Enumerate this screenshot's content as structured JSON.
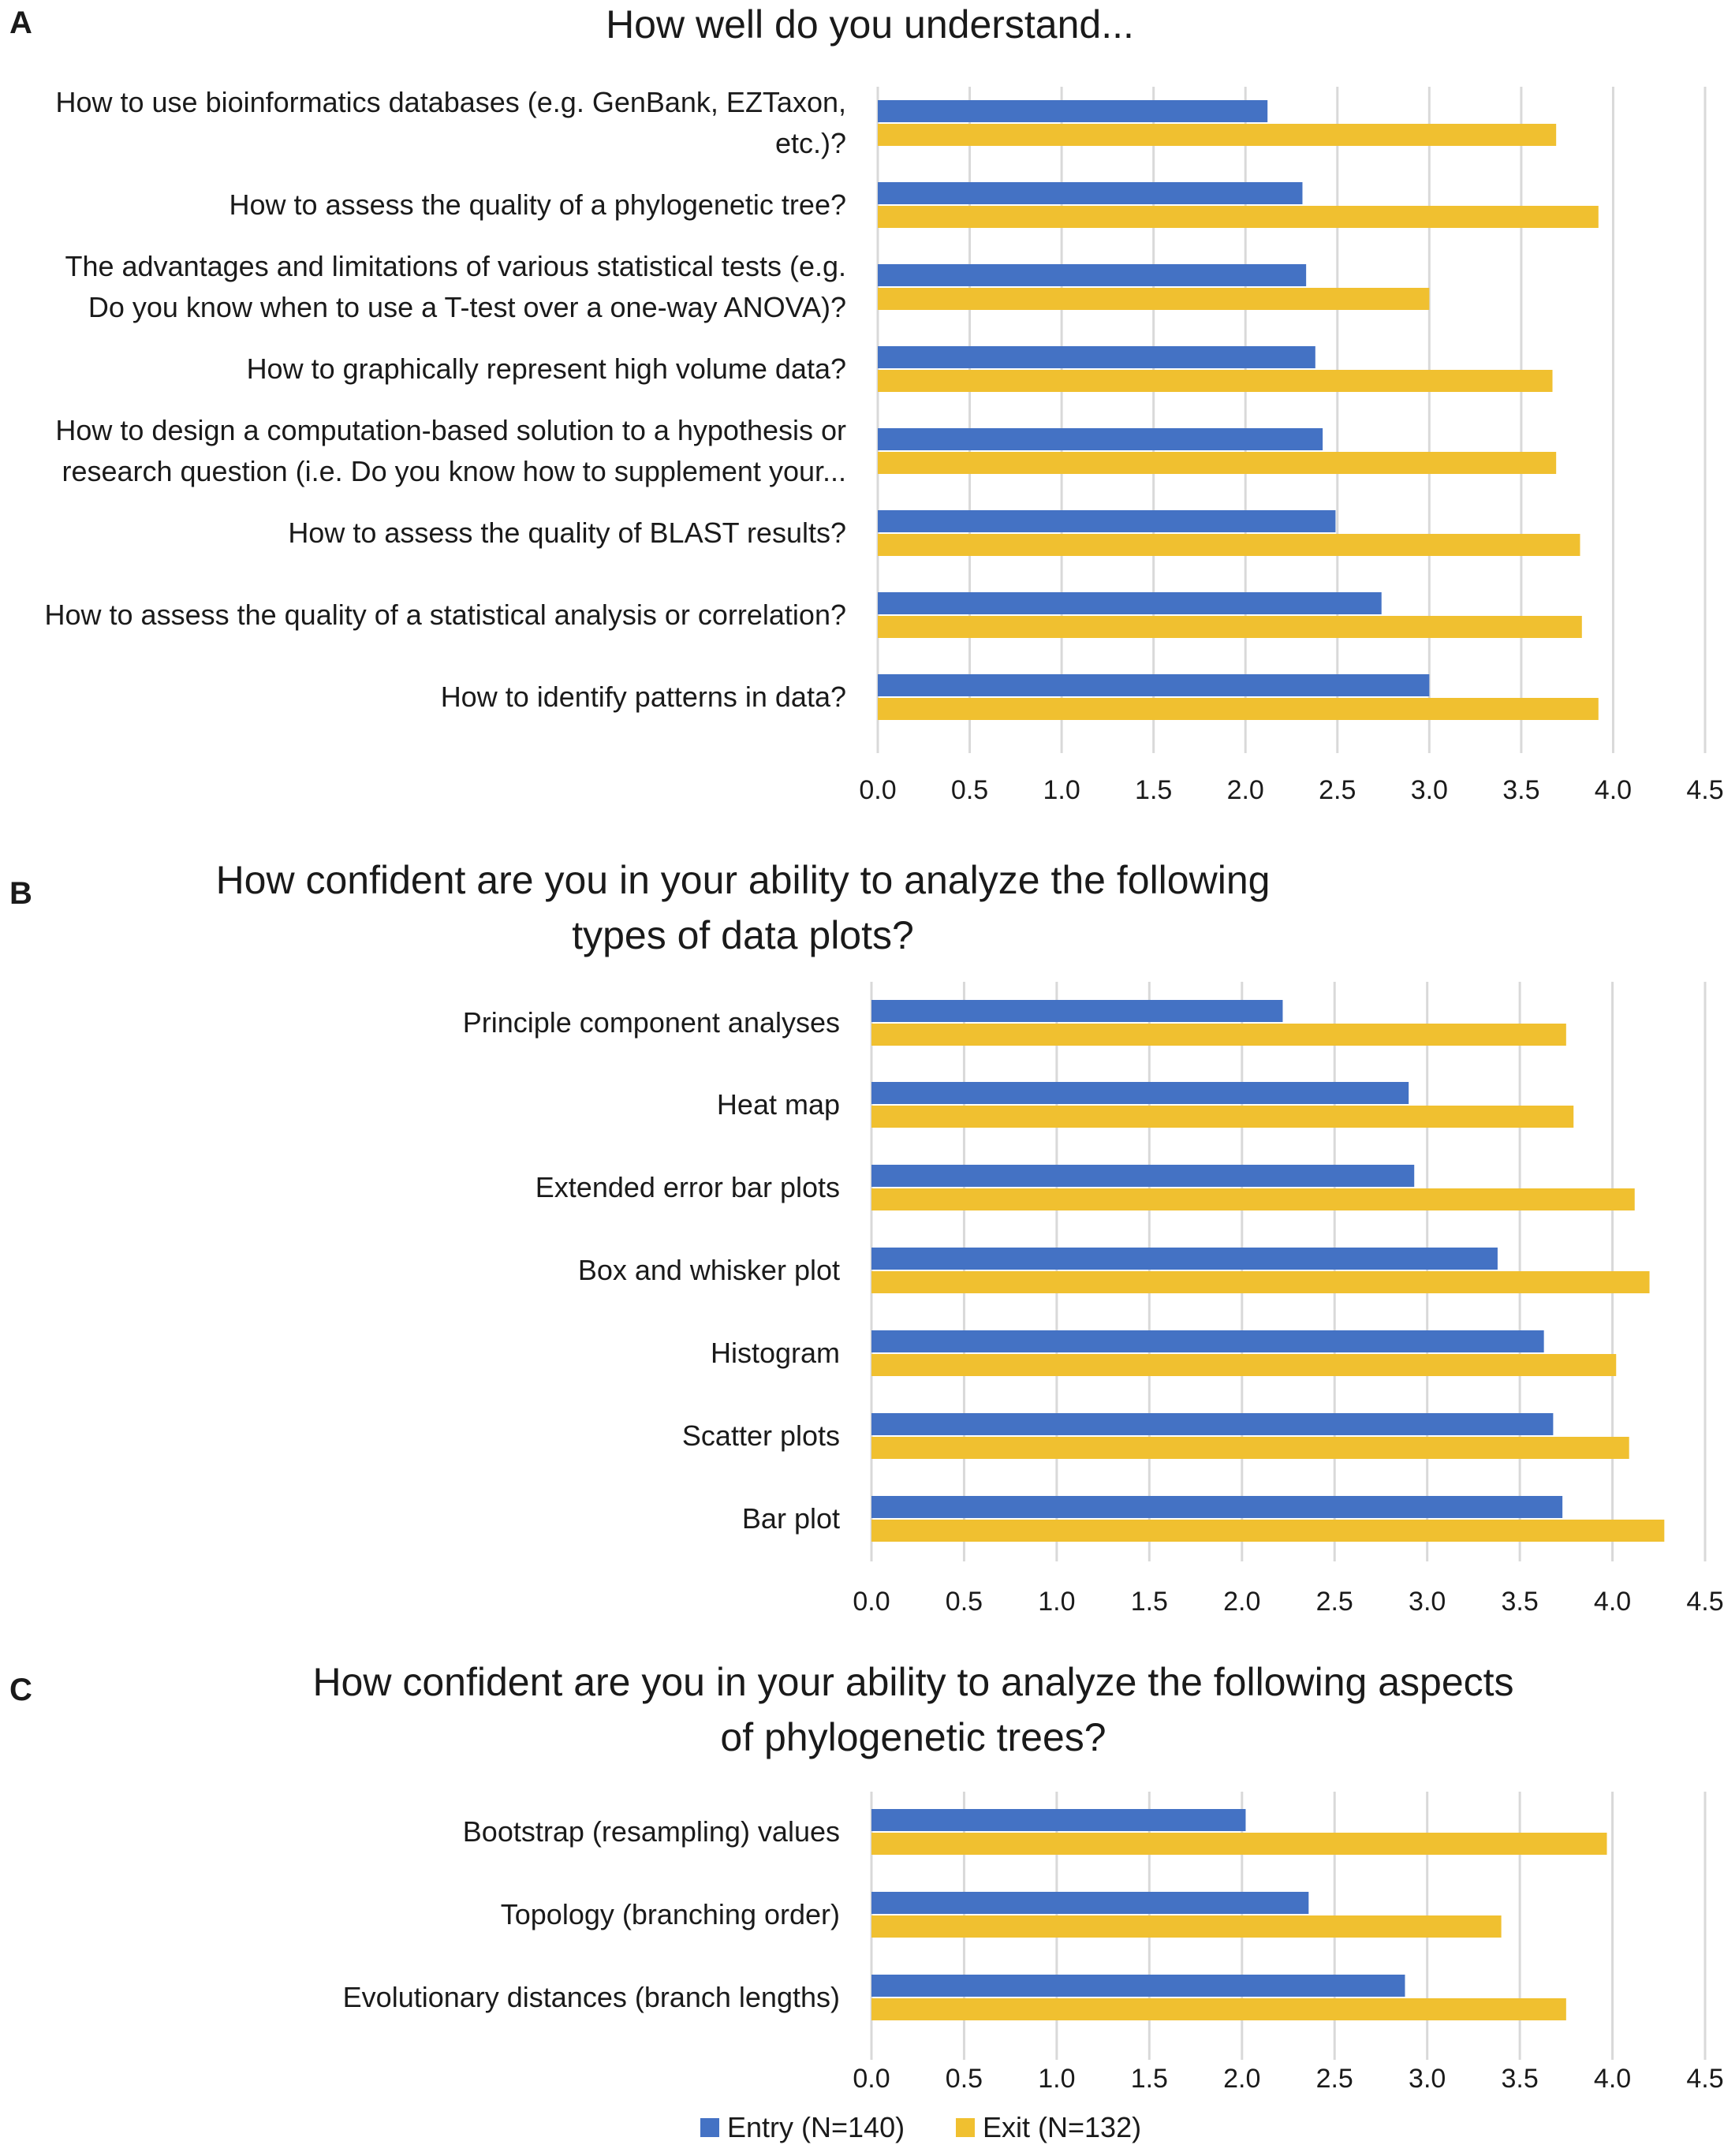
{
  "legend": {
    "entries": [
      {
        "name": "Entry (N=140)",
        "color": "#4472C4"
      },
      {
        "name": "Exit (N=132)",
        "color": "#F0C030"
      }
    ]
  },
  "chart_data": [
    {
      "panel": "A",
      "type": "bar",
      "orientation": "horizontal",
      "title": "How well do you understand...",
      "title_lines": [
        "How well do you understand..."
      ],
      "xlim": [
        0,
        4.5
      ],
      "xticks": [
        "0.0",
        "0.5",
        "1.0",
        "1.5",
        "2.0",
        "2.5",
        "3.0",
        "3.5",
        "4.0",
        "4.5"
      ],
      "tick_values": [
        0,
        0.5,
        1,
        1.5,
        2,
        2.5,
        3,
        3.5,
        4,
        4.5
      ],
      "grid": true,
      "categories": [
        {
          "label": [
            "How to use bioinformatics databases (e.g. GenBank, EZTaxon,",
            "etc.)?"
          ]
        },
        {
          "label": [
            "How to assess the quality of a phylogenetic tree?"
          ]
        },
        {
          "label": [
            "The advantages and limitations of various statistical tests (e.g.",
            "Do you know when to use a T-test over a one-way ANOVA)?"
          ]
        },
        {
          "label": [
            "How to graphically represent high volume data?"
          ]
        },
        {
          "label": [
            "How to design a computation-based solution to a hypothesis or",
            "research question (i.e. Do you know how to supplement your..."
          ]
        },
        {
          "label": [
            "How to assess the quality of BLAST results?"
          ]
        },
        {
          "label": [
            "How to assess the quality of a statistical analysis or correlation?"
          ]
        },
        {
          "label": [
            "How to identify patterns in data?"
          ]
        }
      ],
      "series": [
        {
          "name": "Entry (N=140)",
          "values": [
            2.12,
            2.31,
            2.33,
            2.38,
            2.42,
            2.49,
            2.74,
            3.0
          ]
        },
        {
          "name": "Exit (N=132)",
          "values": [
            3.69,
            3.92,
            3.0,
            3.67,
            3.69,
            3.82,
            3.83,
            3.92
          ]
        }
      ]
    },
    {
      "panel": "B",
      "type": "bar",
      "orientation": "horizontal",
      "title": "How confident are you in your ability to analyze the following types of data plots?",
      "title_lines": [
        "How confident are you in your ability to analyze the following",
        "types of data plots?"
      ],
      "xlim": [
        0,
        4.5
      ],
      "xticks": [
        "0.0",
        "0.5",
        "1.0",
        "1.5",
        "2.0",
        "2.5",
        "3.0",
        "3.5",
        "4.0",
        "4.5"
      ],
      "tick_values": [
        0,
        0.5,
        1,
        1.5,
        2,
        2.5,
        3,
        3.5,
        4,
        4.5
      ],
      "grid": true,
      "categories": [
        {
          "label": [
            "Principle component analyses"
          ]
        },
        {
          "label": [
            "Heat map"
          ]
        },
        {
          "label": [
            "Extended error bar plots"
          ]
        },
        {
          "label": [
            "Box and whisker plot"
          ]
        },
        {
          "label": [
            "Histogram"
          ]
        },
        {
          "label": [
            "Scatter plots"
          ]
        },
        {
          "label": [
            "Bar plot"
          ]
        }
      ],
      "series": [
        {
          "name": "Entry (N=140)",
          "values": [
            2.22,
            2.9,
            2.93,
            3.38,
            3.63,
            3.68,
            3.73
          ]
        },
        {
          "name": "Exit (N=132)",
          "values": [
            3.75,
            3.79,
            4.12,
            4.2,
            4.02,
            4.09,
            4.28
          ]
        }
      ]
    },
    {
      "panel": "C",
      "type": "bar",
      "orientation": "horizontal",
      "title": "How confident are you in your ability to analyze the following aspects of phylogenetic trees?",
      "title_lines": [
        "How confident are you in your ability to analyze the following aspects",
        "of phylogenetic trees?"
      ],
      "xlim": [
        0,
        4.5
      ],
      "xticks": [
        "0.0",
        "0.5",
        "1.0",
        "1.5",
        "2.0",
        "2.5",
        "3.0",
        "3.5",
        "4.0",
        "4.5"
      ],
      "tick_values": [
        0,
        0.5,
        1,
        1.5,
        2,
        2.5,
        3,
        3.5,
        4,
        4.5
      ],
      "grid": true,
      "categories": [
        {
          "label": [
            "Bootstrap (resampling) values"
          ]
        },
        {
          "label": [
            "Topology (branching order)"
          ]
        },
        {
          "label": [
            "Evolutionary distances (branch lengths)"
          ]
        }
      ],
      "series": [
        {
          "name": "Entry (N=140)",
          "values": [
            2.02,
            2.36,
            2.88
          ]
        },
        {
          "name": "Exit (N=132)",
          "values": [
            3.97,
            3.4,
            3.75
          ]
        }
      ]
    }
  ]
}
